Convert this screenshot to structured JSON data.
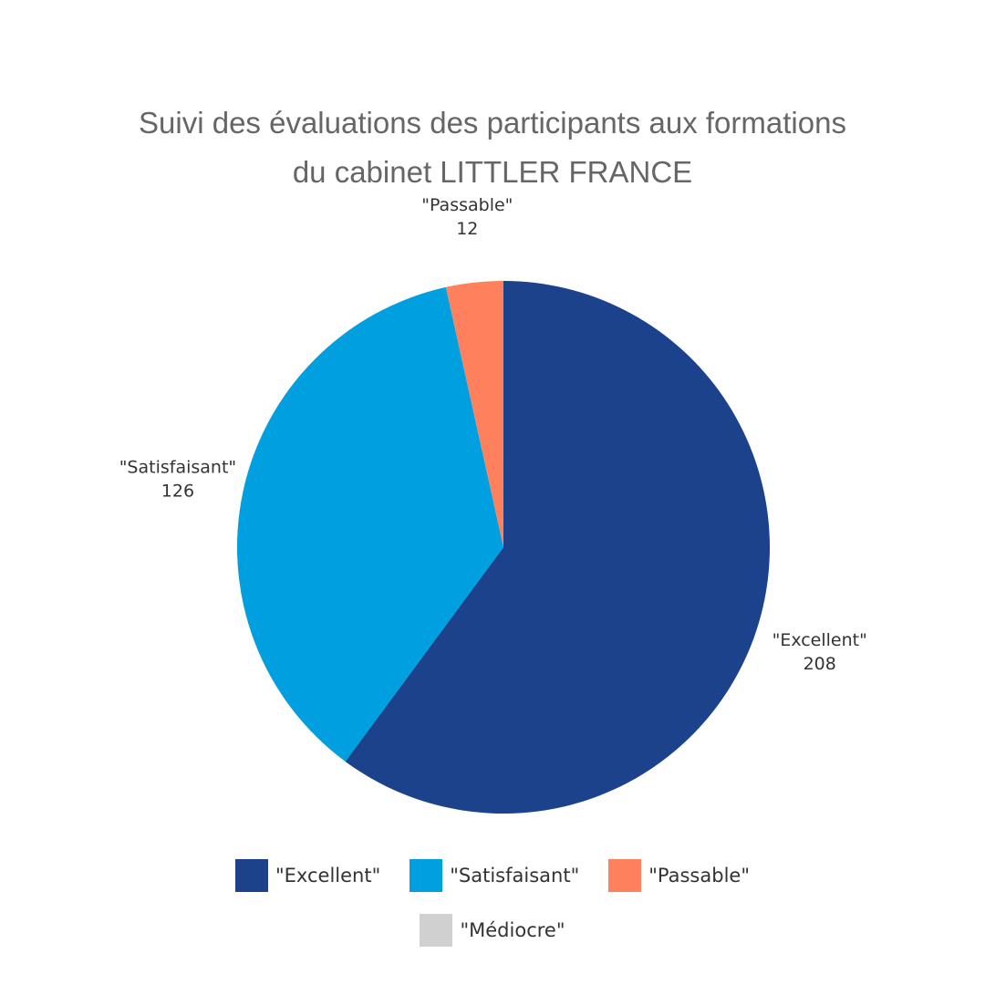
{
  "chart_data": {
    "type": "pie",
    "title_lines": [
      "Suivi des évaluations des participants aux formations",
      "du cabinet LITTLER FRANCE"
    ],
    "slices": [
      {
        "label": "\"Excellent\"",
        "value": 208,
        "color": "#1b428a"
      },
      {
        "label": "\"Satisfaisant\"",
        "value": 126,
        "color": "#009fdf"
      },
      {
        "label": "\"Passable\"",
        "value": 12,
        "color": "#fe805c"
      },
      {
        "label": "\"Médiocre\"",
        "value": 0,
        "color": "#d0d0d0"
      }
    ],
    "legend_placement": "bottom"
  }
}
